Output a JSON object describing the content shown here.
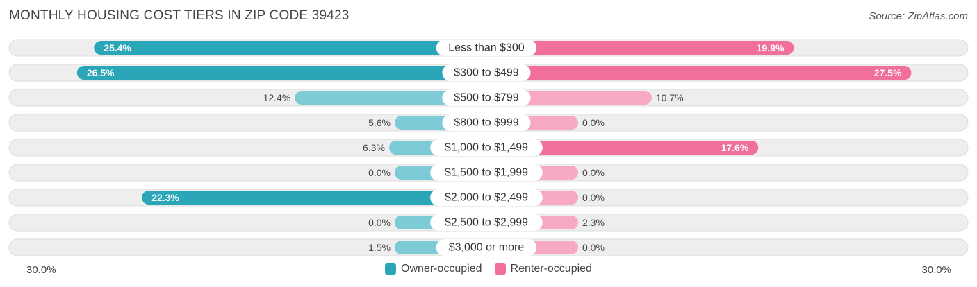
{
  "title": "MONTHLY HOUSING COST TIERS IN ZIP CODE 39423",
  "source": "Source: ZipAtlas.com",
  "axis": {
    "left_label": "30.0%",
    "right_label": "30.0%"
  },
  "legend": {
    "owner_label": "Owner-occupied",
    "renter_label": "Renter-occupied"
  },
  "colors": {
    "owner": "#2aa6b8",
    "owner_light": "#7dcbd6",
    "renter": "#f07099",
    "renter_light": "#f7a9c3",
    "track": "#eeeeee"
  },
  "chart_data": {
    "type": "bar",
    "orientation": "diverging-horizontal",
    "title": "MONTHLY HOUSING COST TIERS IN ZIP CODE 39423",
    "xlim": [
      -30,
      30
    ],
    "categories": [
      "Less than $300",
      "$300 to $499",
      "$500 to $799",
      "$800 to $999",
      "$1,000 to $1,499",
      "$1,500 to $1,999",
      "$2,000 to $2,499",
      "$2,500 to $2,999",
      "$3,000 or more"
    ],
    "series": [
      {
        "name": "Owner-occupied",
        "values": [
          25.4,
          26.5,
          12.4,
          5.6,
          6.3,
          0.0,
          22.3,
          0.0,
          1.5
        ],
        "labels": [
          "25.4%",
          "26.5%",
          "12.4%",
          "5.6%",
          "6.3%",
          "0.0%",
          "22.3%",
          "0.0%",
          "1.5%"
        ]
      },
      {
        "name": "Renter-occupied",
        "values": [
          19.9,
          27.5,
          10.7,
          0.0,
          17.6,
          0.0,
          0.0,
          2.3,
          0.0
        ],
        "labels": [
          "19.9%",
          "27.5%",
          "10.7%",
          "0.0%",
          "17.6%",
          "0.0%",
          "0.0%",
          "2.3%",
          "0.0%"
        ]
      }
    ],
    "legend_position": "bottom-center",
    "grid": false
  }
}
